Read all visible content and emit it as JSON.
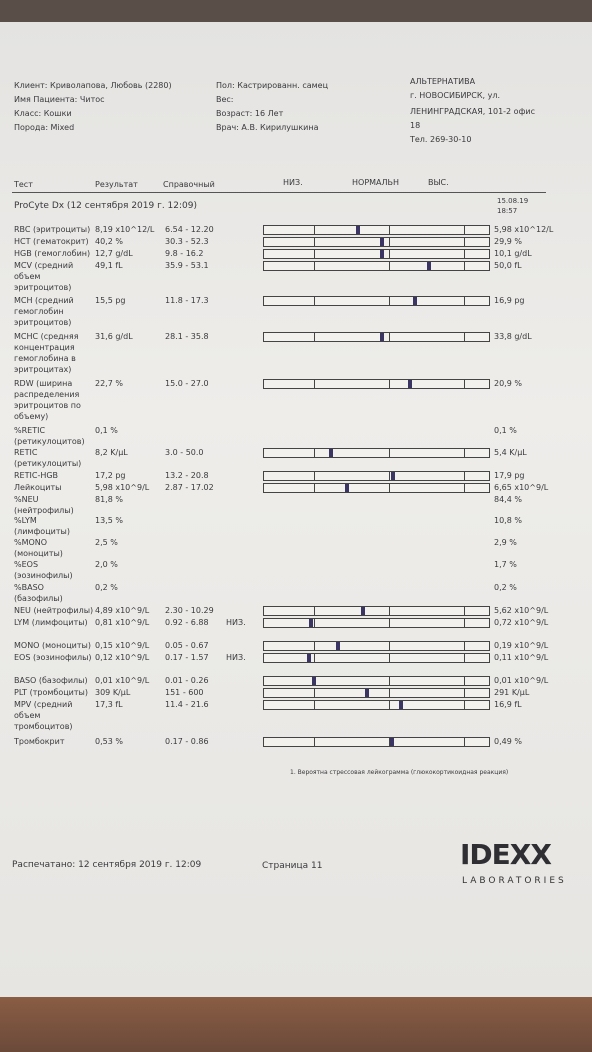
{
  "header": {
    "left": [
      "Клиент: Криволапова, Любовь (2280)",
      "Имя Пациента: Читос",
      "Класс: Кошки",
      "Порода: Mixed"
    ],
    "middle": [
      "Пол: Кастрированн. самец",
      "Вес:",
      "Возраст: 16 Лет",
      "Врач: А.В. Кирилушкина"
    ],
    "clinic": [
      "АЛЬТЕРНАТИВА",
      "г. НОВОСИБИРСК, ул.",
      "ЛЕНИНГРАДСКАЯ, 101-2 офис",
      "18",
      "Тел. 269-30-10"
    ]
  },
  "columns": {
    "test": "Тест",
    "result": "Результат",
    "range": "Справочный",
    "low": "НИЗ.",
    "normal": "НОРМАЛЬН",
    "high": "ВЫС."
  },
  "section": {
    "title": "ProCyte Dx (12 сентября 2019 г. 12:09)",
    "previous_date": "15.08.19",
    "previous_time": "18:57"
  },
  "rows": [
    {
      "test": "RBC (эритроциты)",
      "result": "8,19 x10^12/L",
      "range": "6.54 - 12.20",
      "previous": "5,98 x10^12/L"
    },
    {
      "test": "HCT (гематокрит)",
      "result": "40,2 %",
      "range": "30.3 - 52.3",
      "previous": "29,9 %"
    },
    {
      "test": "HGB (гемоглобин)",
      "result": "12,7 g/dL",
      "range": "9.8 - 16.2",
      "previous": "10,1 g/dL"
    },
    {
      "test": "MCV (средний объем эритроцитов)",
      "result": "49,1 fL",
      "range": "35.9 - 53.1",
      "previous": "50,0 fL"
    },
    {
      "test": "MCH (средний гемоглобин эритроцитов)",
      "result": "15,5 pg",
      "range": "11.8 - 17.3",
      "previous": "16,9 pg"
    },
    {
      "test": "MCHC (средняя концентрация гемоглобина в эритроцитах)",
      "result": "31,6 g/dL",
      "range": "28.1 - 35.8",
      "previous": "33,8 g/dL"
    },
    {
      "test": "RDW (ширина распределения эритроцитов по объему)",
      "result": "22,7 %",
      "range": "15.0 - 27.0",
      "previous": "20,9 %"
    },
    {
      "test": "%RETIC (ретикулоцитов)",
      "result": "0,1 %",
      "previous": "0,1 %"
    },
    {
      "test": "RETIC (ретикулоциты)",
      "result": "8,2 K/µL",
      "range": "3.0 - 50.0",
      "previous": "5,4 K/µL"
    },
    {
      "test": "RETIC-HGB",
      "result": "17,2 pg",
      "range": "13.2 - 20.8",
      "previous": "17,9 pg"
    },
    {
      "test": "Лейкоциты",
      "result": "5,98 x10^9/L",
      "range": "2.87 - 17.02",
      "previous": "6,65 x10^9/L"
    },
    {
      "test": "%NEU (нейтрофилы)",
      "result": "81,8 %",
      "previous": "84,4 %"
    },
    {
      "test": "%LYM (лимфоциты)",
      "result": "13,5 %",
      "previous": "10,8 %"
    },
    {
      "test": "%MONO (моноциты)",
      "result": "2,5 %",
      "previous": "2,9 %"
    },
    {
      "test": "%EOS (эозинофилы)",
      "result": "2,0 %",
      "previous": "1,7 %"
    },
    {
      "test": "%BASO (базофилы)",
      "result": "0,2 %",
      "previous": "0,2 %"
    },
    {
      "test": "NEU (нейтрофилы)",
      "result": "4,89 x10^9/L",
      "range": "2.30 - 10.29",
      "previous": "5,62 x10^9/L"
    },
    {
      "test": "LYM (лимфоциты)",
      "result": "0,81 x10^9/L",
      "range": "0.92 - 6.88",
      "flag": "НИЗ.",
      "previous": "0,72 x10^9/L"
    },
    {
      "test": "MONO (моноциты)",
      "result": "0,15 x10^9/L",
      "range": "0.05 - 0.67",
      "previous": "0,19 x10^9/L"
    },
    {
      "test": "EOS (эозинофилы)",
      "result": "0,12 x10^9/L",
      "range": "0.17 - 1.57",
      "flag": "НИЗ.",
      "previous": "0,11 x10^9/L"
    },
    {
      "test": "BASO (базофилы)",
      "result": "0,01 x10^9/L",
      "range": "0.01 - 0.26",
      "previous": "0,01 x10^9/L"
    },
    {
      "test": "PLT (тромбоциты)",
      "result": "309 K/µL",
      "range": "151 - 600",
      "previous": "291 K/µL"
    },
    {
      "test": "MPV (средний объем тромбоцитов)",
      "result": "17,3 fL",
      "range": "11.4 - 21.6",
      "previous": "16,9 fL"
    },
    {
      "test": "Тромбокрит",
      "result": "0,53 %",
      "range": "0.17 - 0.86",
      "previous": "0,49 %"
    }
  ],
  "footnote": "1. Вероятна стрессовая лейкограмма (глюкокортикоидная реакция)",
  "footer": {
    "printed": "Распечатано: 12 сентября 2019 г. 12:09",
    "page": "Страница 11",
    "logo": "IDEXX",
    "logo_sub": "LABORATORIES"
  }
}
